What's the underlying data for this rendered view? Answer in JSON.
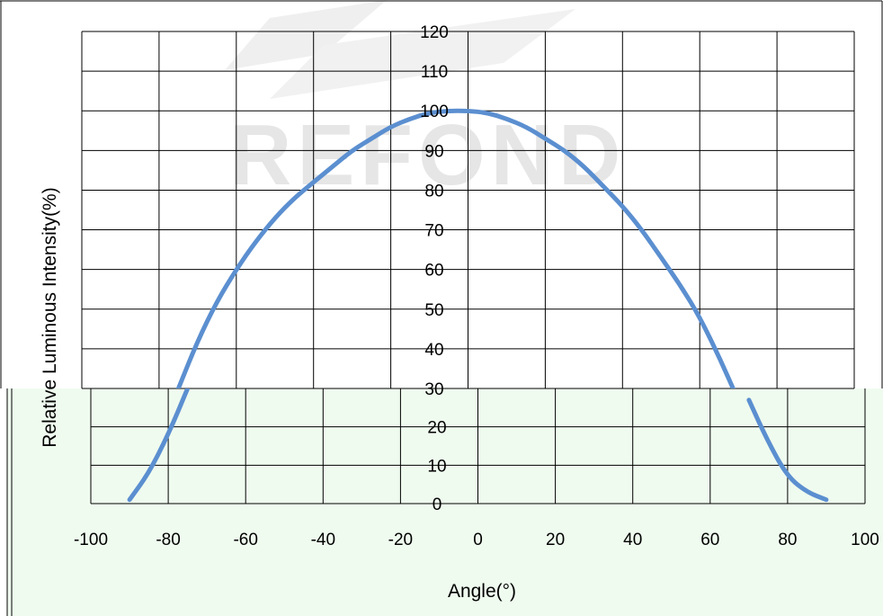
{
  "chart_data": {
    "type": "line",
    "title": "",
    "xlabel": "Angle(°)",
    "ylabel": "Relative Luminous Intensity(%)",
    "xlim": [
      -100,
      100
    ],
    "ylim": [
      0,
      120
    ],
    "x_ticks": [
      "-100",
      "-80",
      "-60",
      "-40",
      "-20",
      "0",
      "20",
      "40",
      "60",
      "80",
      "100"
    ],
    "y_ticks": [
      "0",
      "10",
      "20",
      "30",
      "40",
      "50",
      "60",
      "70",
      "80",
      "90",
      "100",
      "110",
      "120"
    ],
    "grid": true,
    "legend": "none",
    "series": [
      {
        "color": "#5b8fd0",
        "x": [
          -90,
          -85,
          -80,
          -75,
          -70,
          -65,
          -60,
          -55,
          -50,
          -45,
          -40,
          -35,
          -30,
          -25,
          -20,
          -15,
          -10,
          -5,
          0,
          5,
          10,
          15,
          20,
          25,
          30,
          35,
          40,
          45,
          50,
          55,
          60,
          65,
          70,
          75,
          80,
          85,
          90
        ],
        "y": [
          1,
          8,
          18,
          30,
          42,
          52,
          60,
          67,
          73,
          78,
          82,
          86,
          90,
          93,
          96,
          98,
          99.5,
          100,
          100,
          99.5,
          98,
          96,
          93,
          90,
          86,
          81,
          76,
          70,
          63,
          56,
          48,
          38,
          27,
          16,
          7,
          3,
          1
        ]
      }
    ],
    "background_bands": [
      "#ffffff",
      "#effbef"
    ],
    "watermark": "REFOND"
  }
}
